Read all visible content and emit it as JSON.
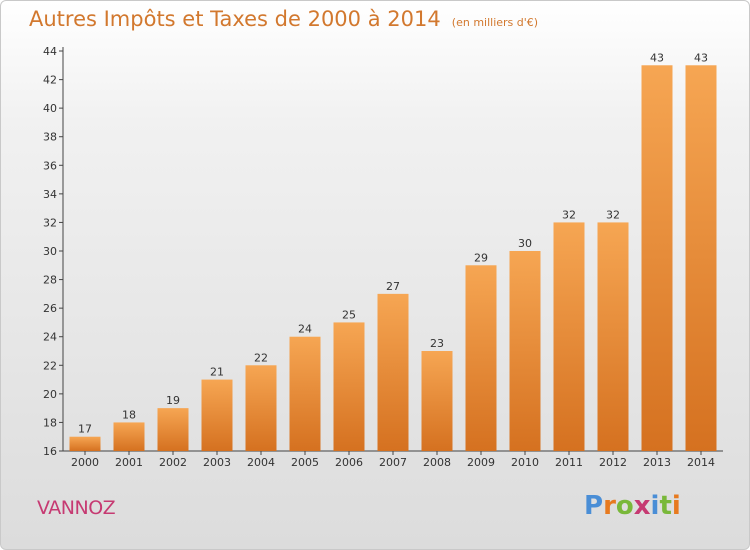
{
  "header": {
    "title": "Autres Impôts et Taxes de 2000 à 2014",
    "subtitle": "(en milliers d'€)"
  },
  "footer": {
    "town": "VANNOZ",
    "logo": "Proxiti"
  },
  "colors": {
    "bar_light": "#f6a653",
    "bar_dark": "#d57120",
    "title": "#d2782e",
    "town": "#c63a72",
    "logo": [
      "#4a8ed6",
      "#e77a1f",
      "#79b83a",
      "#c63a72",
      "#4a8ed6",
      "#79b83a",
      "#e77a1f"
    ]
  },
  "chart_data": {
    "type": "bar",
    "categories": [
      "2000",
      "2001",
      "2002",
      "2003",
      "2004",
      "2005",
      "2006",
      "2007",
      "2008",
      "2009",
      "2010",
      "2011",
      "2012",
      "2013",
      "2014"
    ],
    "values": [
      17,
      18,
      19,
      21,
      22,
      24,
      25,
      27,
      23,
      29,
      30,
      32,
      32,
      43,
      43
    ],
    "data_labels": [
      "17",
      "18",
      "19",
      "21",
      "22",
      "24",
      "25",
      "27",
      "23",
      "29",
      "30",
      "32",
      "32",
      "43",
      "43"
    ],
    "yticks": [
      "16",
      "18",
      "20",
      "22",
      "24",
      "26",
      "28",
      "30",
      "32",
      "34",
      "36",
      "38",
      "40",
      "42",
      "44"
    ],
    "ylim": [
      16,
      44
    ],
    "grid": false,
    "title": "Autres Impôts et Taxes de 2000 à 2014",
    "xlabel": "",
    "ylabel": ""
  }
}
